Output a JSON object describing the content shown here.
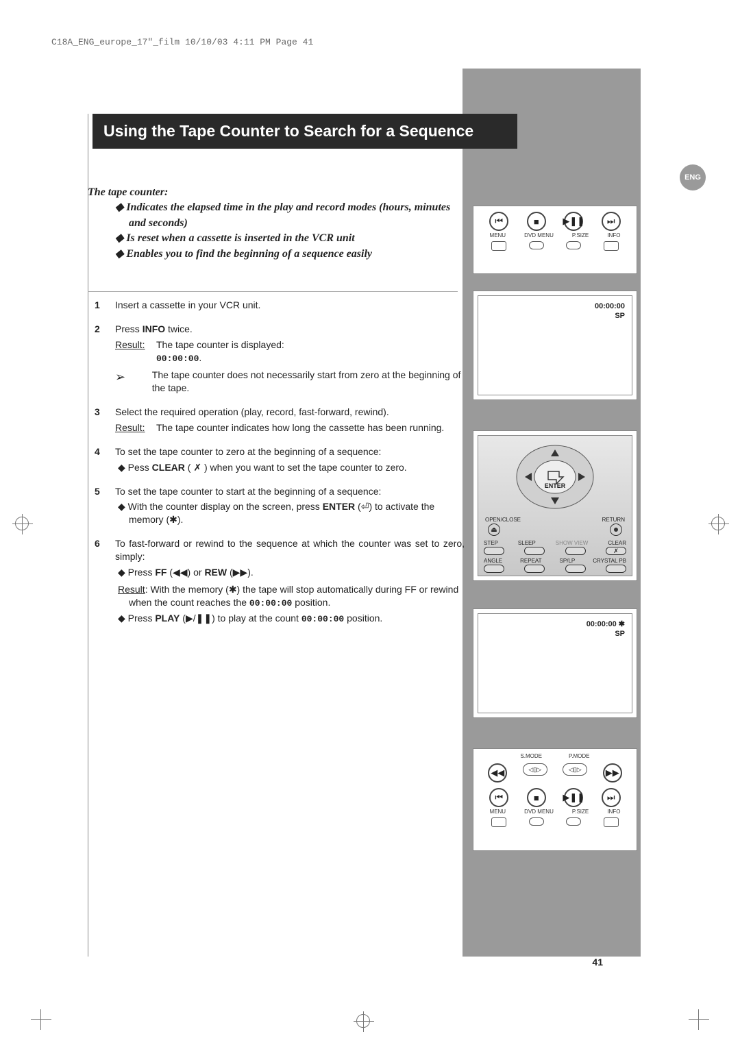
{
  "meta": {
    "crop_header": "C18A_ENG_europe_17\"_film  10/10/03  4:11 PM  Page 41",
    "lang_badge": "ENG",
    "page_number": "41"
  },
  "title": "Using the Tape Counter to Search for a Sequence",
  "intro": {
    "lead": "The tape counter:",
    "bullets": [
      "Indicates the elapsed time in the play and record modes (hours, minutes and seconds)",
      "Is reset when a cassette is inserted in the VCR unit",
      "Enables you to find the beginning of a sequence easily"
    ]
  },
  "steps": [
    {
      "num": "1",
      "text": "Insert a cassette in your VCR unit."
    },
    {
      "num": "2",
      "text_html": "Press <b>INFO</b> twice.",
      "result_html": "The tape counter is displayed:<br><tt>00:00:00</tt>.",
      "note": "The tape counter does not necessarily start from zero at the beginning of the tape."
    },
    {
      "num": "3",
      "text": "Select the required operation (play, record, fast-forward, rewind).",
      "result": "The tape counter indicates how long the cassette has been running."
    },
    {
      "num": "4",
      "text": "To set the tape counter to zero at the beginning of a sequence:",
      "bullets_html": [
        "Pess <b>CLEAR</b> ( ✗ ) when you want to set the tape counter to zero."
      ]
    },
    {
      "num": "5",
      "text": "To set the tape counter to start at the beginning of a sequence:",
      "bullets_html": [
        "With the counter display on the screen, press <b>ENTER</b> (⏎) to activate the memory (✱)."
      ]
    },
    {
      "num": "6",
      "text": "To fast-forward or rewind to the sequence at which the counter was set to zero, simply:",
      "bullets_html": [
        "Press <b>FF</b> (◀◀) or <b>REW</b> (▶▶).<br><span style='display:inline-block;margin-top:6px'><u>Result</u>: With the memory (✱) the tape will stop automatically during FF or rewind when the count reaches the <tt>00:00:00</tt> position.</span>",
        "Press <b>PLAY</b> (▶/❚❚) to play at the count <tt>00:00:00</tt> position."
      ]
    }
  ],
  "figures": {
    "remote_top": {
      "buttons": [
        "⏮",
        "■",
        "▶❚❚",
        "⏭"
      ],
      "labels": [
        "MENU",
        "DVD MENU",
        "P.SIZE",
        "INFO"
      ]
    },
    "screen1": {
      "line1": "00:00:00",
      "line2": "SP"
    },
    "enter_pad": {
      "center": "ENTER",
      "side_left": "OPEN/CLOSE",
      "side_right": "RETURN",
      "row1_labels": [
        "STEP",
        "SLEEP",
        "SHOW VIEW",
        "CLEAR"
      ],
      "row2_labels": [
        "ANGLE",
        "REPEAT",
        "SP/LP",
        "CRYSTAL PB"
      ]
    },
    "screen2": {
      "line1": "00:00:00 ✱",
      "line2": "SP"
    },
    "remote_bottom": {
      "top_labels": [
        "",
        "S.MODE",
        "P.MODE",
        ""
      ],
      "row1": [
        "◀◀",
        "◁▯▷",
        "◁▯▷",
        "▶▶"
      ],
      "row2": [
        "⏮",
        "■",
        "▶❚❚",
        "⏭"
      ],
      "bottom_labels": [
        "MENU",
        "DVD MENU",
        "P.SIZE",
        "INFO"
      ]
    }
  },
  "style": {
    "title_bg": "#2a2a2a",
    "title_fg": "#ffffff",
    "grey_col": "#9a9a9a",
    "body_font_size": 14
  }
}
